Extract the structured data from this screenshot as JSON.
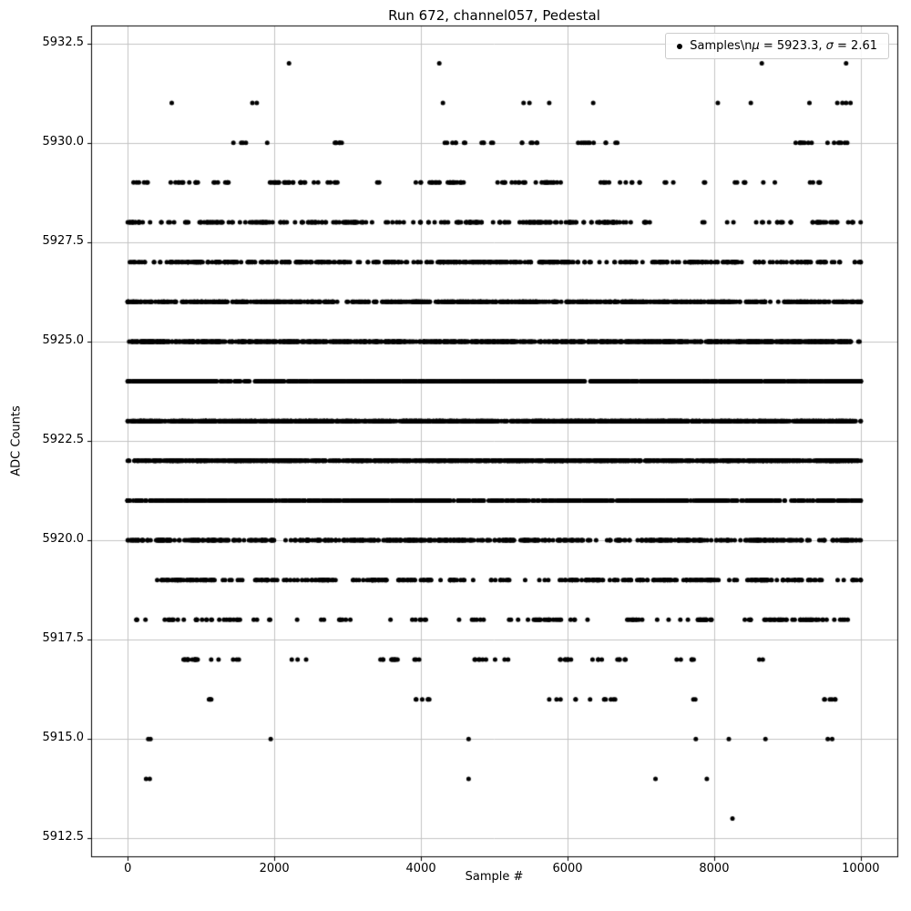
{
  "chart_data": {
    "type": "scatter",
    "title": "Run 672, channel057, Pedestal",
    "xlabel": "Sample #",
    "ylabel": "ADC Counts",
    "xlim": [
      -500,
      10499
    ],
    "ylim": [
      5912.05,
      5932.95
    ],
    "x_ticks": [
      0,
      2000,
      4000,
      6000,
      8000,
      10000
    ],
    "x_tick_labels": [
      "0",
      "2000",
      "4000",
      "6000",
      "8000",
      "10000"
    ],
    "y_ticks": [
      5912.5,
      5915.0,
      5917.5,
      5920.0,
      5922.5,
      5925.0,
      5927.5,
      5930.0,
      5932.5
    ],
    "y_tick_labels": [
      "5912.5",
      "5915.0",
      "5917.5",
      "5920.0",
      "5922.5",
      "5925.0",
      "5927.5",
      "5930.0",
      "5932.5"
    ],
    "grid": true,
    "grid_color": "#c3c3c3",
    "marker_color": "#000000",
    "n_samples": 10000,
    "legend": {
      "position": "upper right",
      "label_full": "Samples\\nμ = 5923.3, σ = 2.61",
      "label_parts": {
        "prefix": "Samples\\n",
        "mu": "μ",
        "mid": " = 5923.3, ",
        "sigma": "σ",
        "end": " = 2.61"
      },
      "stats": {
        "mu": 5923.3,
        "sigma": 2.61
      }
    },
    "levels": [
      {
        "adc": 5932,
        "x": [
          2200,
          4250,
          8650,
          9800
        ]
      },
      {
        "adc": 5931,
        "x": [
          600,
          1700,
          1760,
          4300,
          5400,
          5480,
          5750,
          6350,
          8050,
          8500,
          9300,
          9680,
          9750,
          9800,
          9860
        ]
      },
      {
        "adc": 5930,
        "count": 55
      },
      {
        "adc": 5929,
        "count": 140
      },
      {
        "adc": 5928,
        "count": 300
      },
      {
        "adc": 5927,
        "count": 550
      },
      {
        "adc": 5926,
        "count": 850
      },
      {
        "adc": 5925,
        "count": 1200
      },
      {
        "adc": 5924,
        "count": 1450
      },
      {
        "adc": 5923,
        "count": 1500
      },
      {
        "adc": 5922,
        "count": 1350
      },
      {
        "adc": 5921,
        "count": 1050
      },
      {
        "adc": 5920,
        "count": 700
      },
      {
        "adc": 5919,
        "count": 420
      },
      {
        "adc": 5918,
        "count": 170
      },
      {
        "adc": 5917,
        "count": 70
      },
      {
        "adc": 5916,
        "count": 30
      },
      {
        "adc": 5915,
        "x": [
          280,
          310,
          1950,
          4650,
          7750,
          8200,
          8700,
          9550,
          9610
        ]
      },
      {
        "adc": 5914,
        "x": [
          250,
          300,
          4650,
          7200,
          7900
        ]
      },
      {
        "adc": 5913,
        "x": [
          8250
        ]
      }
    ]
  }
}
